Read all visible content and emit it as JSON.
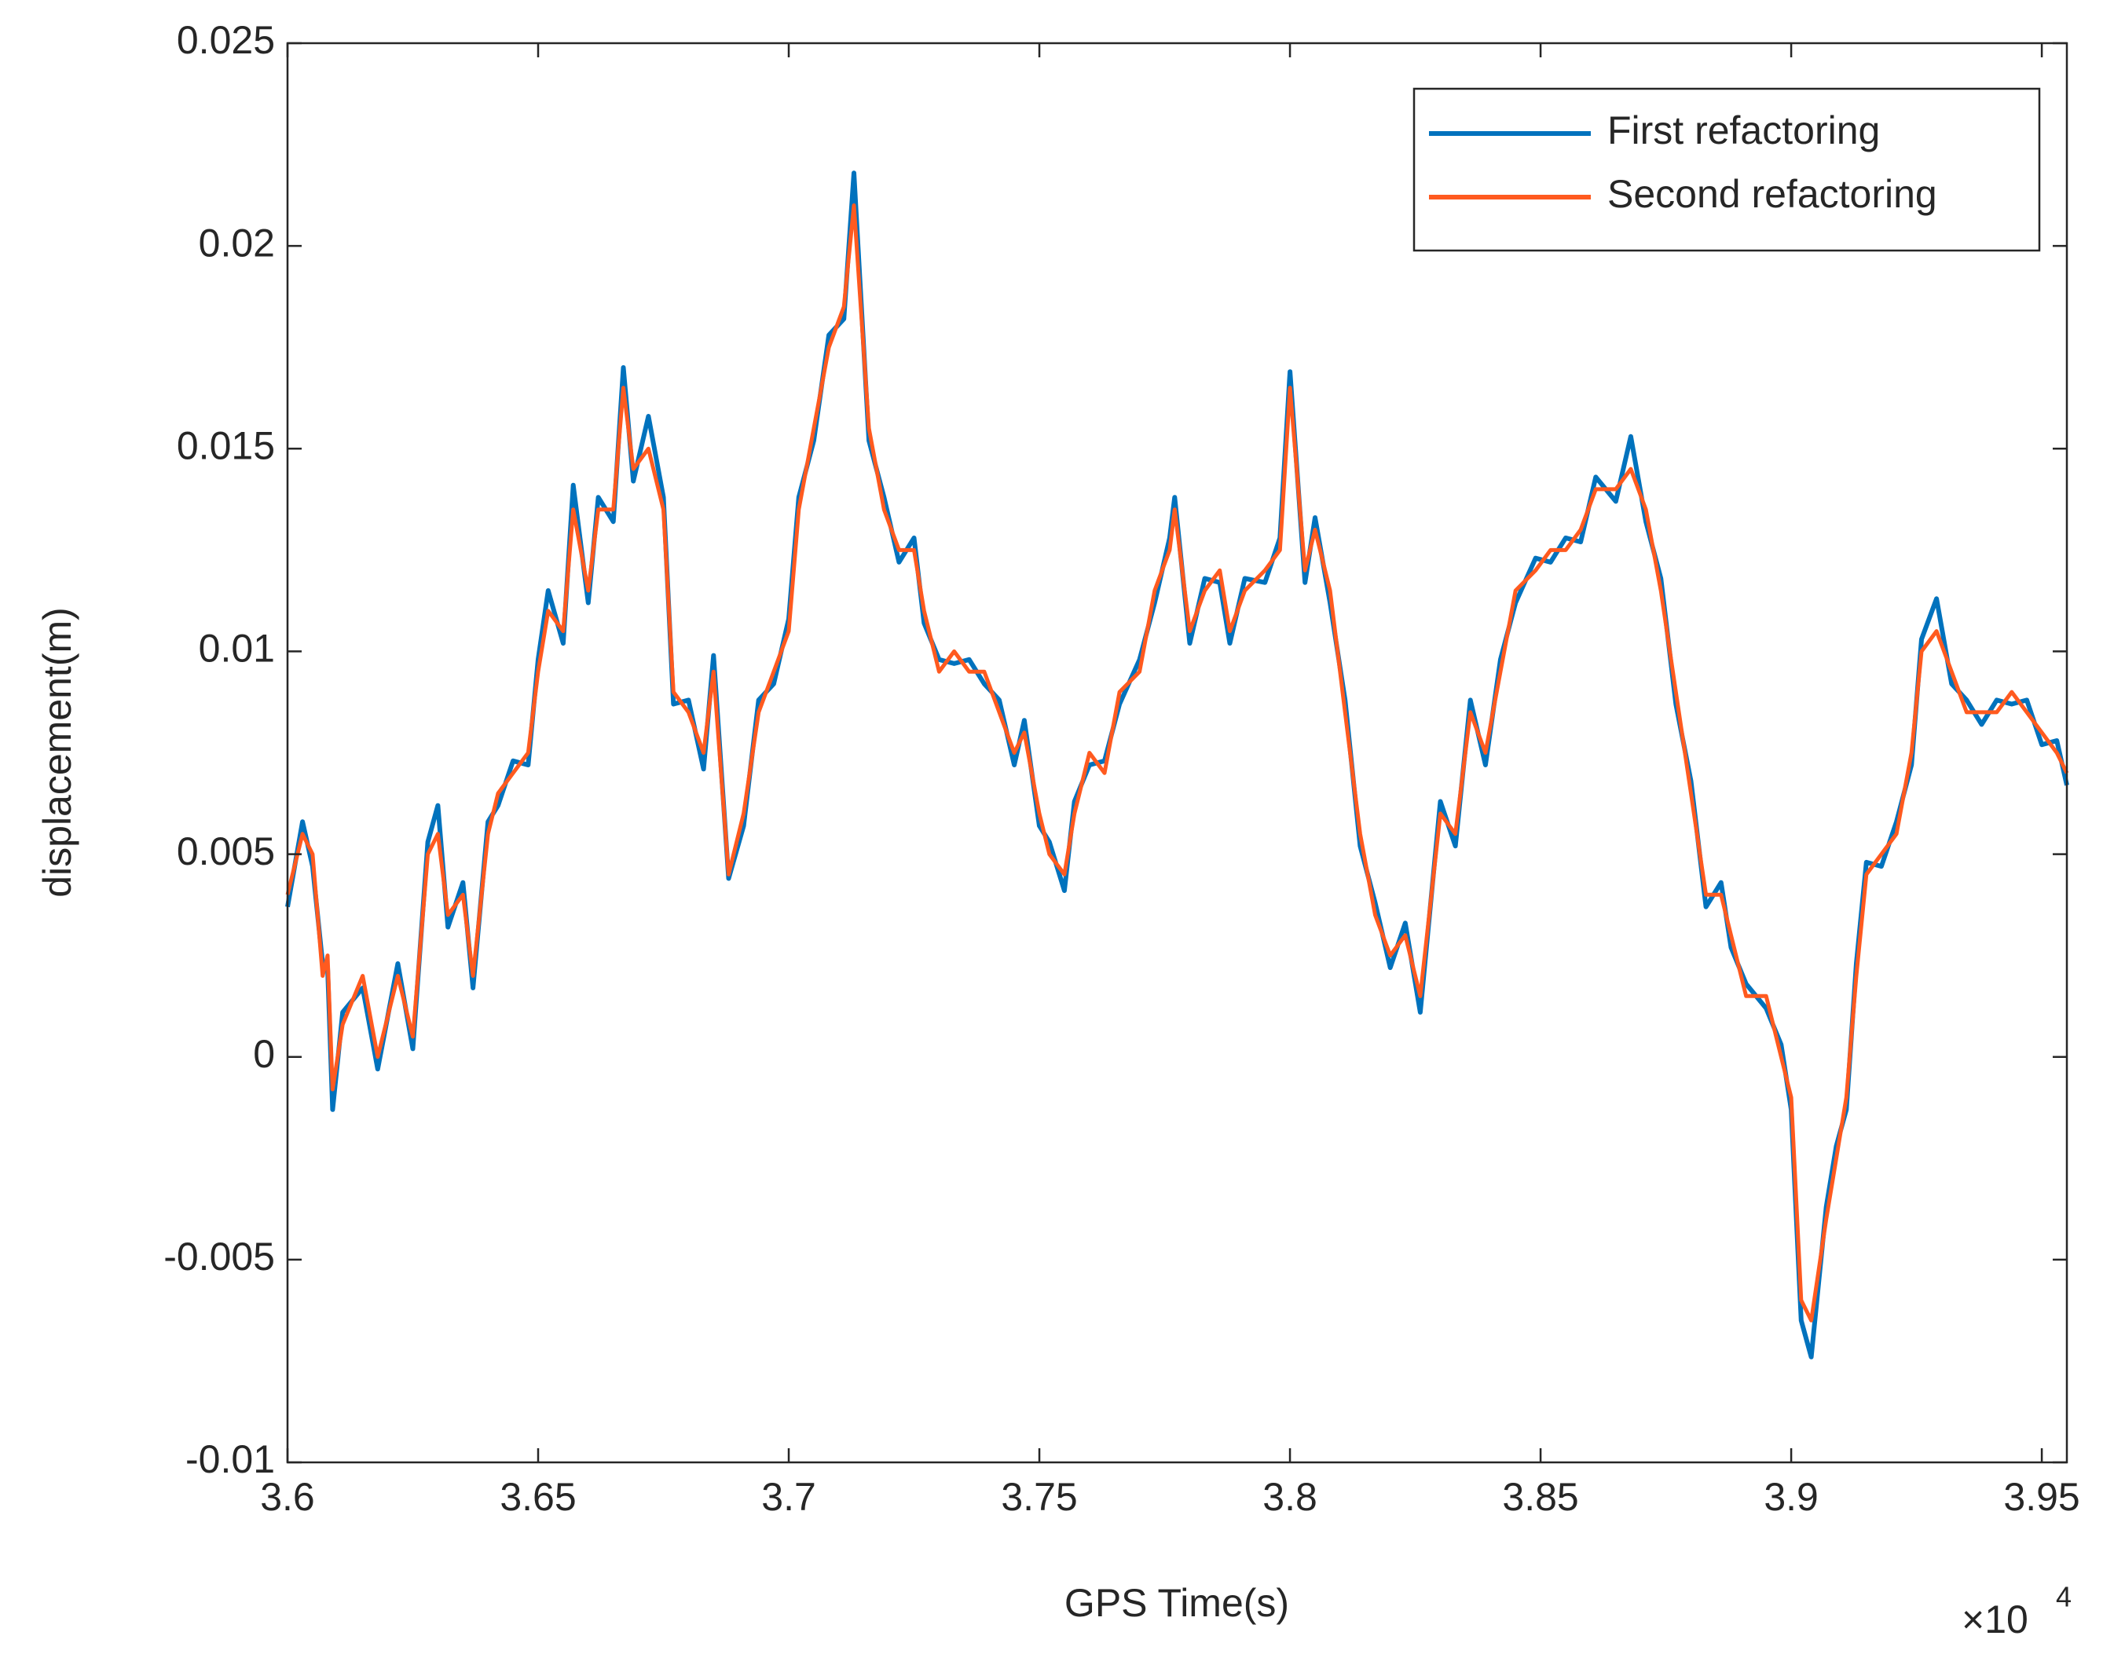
{
  "chart_data": {
    "type": "line",
    "xlabel": "GPS Time(s)",
    "ylabel": "displacement(m)",
    "x_multiplier": {
      "base": "×10",
      "exponent": "4"
    },
    "x": [
      36000,
      36030,
      36050,
      36070,
      36080,
      36090,
      36110,
      36150,
      36180,
      36220,
      36250,
      36280,
      36300,
      36320,
      36350,
      36370,
      36400,
      36420,
      36450,
      36480,
      36500,
      36520,
      36550,
      36570,
      36600,
      36620,
      36650,
      36670,
      36690,
      36720,
      36750,
      36770,
      36800,
      36830,
      36850,
      36880,
      36910,
      36940,
      36970,
      37000,
      37020,
      37050,
      37080,
      37110,
      37130,
      37160,
      37190,
      37220,
      37250,
      37270,
      37300,
      37330,
      37360,
      37390,
      37420,
      37450,
      37470,
      37500,
      37520,
      37550,
      37570,
      37600,
      37630,
      37660,
      37700,
      37730,
      37760,
      37770,
      37800,
      37830,
      37860,
      37880,
      37910,
      37950,
      37980,
      38000,
      38030,
      38050,
      38080,
      38110,
      38140,
      38170,
      38200,
      38230,
      38260,
      38300,
      38330,
      38360,
      38390,
      38420,
      38450,
      38490,
      38520,
      38550,
      38580,
      38610,
      38650,
      38680,
      38710,
      38740,
      38770,
      38800,
      38830,
      38860,
      38880,
      38910,
      38950,
      38980,
      39000,
      39020,
      39040,
      39070,
      39090,
      39110,
      39130,
      39150,
      39180,
      39210,
      39240,
      39260,
      39290,
      39320,
      39350,
      39380,
      39410,
      39440,
      39470,
      39500,
      39530,
      39550
    ],
    "series": [
      {
        "name": "First refactoring",
        "color": "#0072BD",
        "values": [
          0.0037,
          0.0058,
          0.0047,
          0.0023,
          0.0022,
          -0.0013,
          0.0011,
          0.0017,
          -0.0003,
          0.0023,
          0.0002,
          0.0053,
          0.0062,
          0.0032,
          0.0043,
          0.0017,
          0.0058,
          0.0062,
          0.0073,
          0.0072,
          0.0098,
          0.0115,
          0.0102,
          0.0141,
          0.0112,
          0.0138,
          0.0132,
          0.017,
          0.0142,
          0.0158,
          0.0138,
          0.0087,
          0.0088,
          0.0071,
          0.0099,
          0.0044,
          0.0057,
          0.0088,
          0.0092,
          0.0108,
          0.0138,
          0.0152,
          0.0178,
          0.0182,
          0.0218,
          0.0152,
          0.0138,
          0.0122,
          0.0128,
          0.0107,
          0.0098,
          0.0097,
          0.0098,
          0.0092,
          0.0088,
          0.0072,
          0.0083,
          0.0057,
          0.0053,
          0.0041,
          0.0063,
          0.0072,
          0.0073,
          0.0087,
          0.0098,
          0.0112,
          0.0128,
          0.0138,
          0.0102,
          0.0118,
          0.0117,
          0.0102,
          0.0118,
          0.0117,
          0.0128,
          0.0169,
          0.0117,
          0.0133,
          0.0112,
          0.0088,
          0.0052,
          0.0038,
          0.0022,
          0.0033,
          0.0011,
          0.0063,
          0.0052,
          0.0088,
          0.0072,
          0.0098,
          0.0112,
          0.0123,
          0.0122,
          0.0128,
          0.0127,
          0.0143,
          0.0137,
          0.0153,
          0.0132,
          0.0118,
          0.0087,
          0.0068,
          0.0037,
          0.0043,
          0.0027,
          0.0018,
          0.0012,
          0.0003,
          -0.0013,
          -0.0065,
          -0.0074,
          -0.0037,
          -0.0022,
          -0.0013,
          0.0023,
          0.0048,
          0.0047,
          0.0058,
          0.0072,
          0.0103,
          0.0113,
          0.0092,
          0.0088,
          0.0082,
          0.0088,
          0.0087,
          0.0088,
          0.0077,
          0.0078,
          0.0067
        ]
      },
      {
        "name": "Second refactoring",
        "color": "#FF5A1F",
        "values": [
          0.004,
          0.0055,
          0.005,
          0.002,
          0.0025,
          -0.0008,
          0.0008,
          0.002,
          0.0,
          0.002,
          0.0005,
          0.005,
          0.0055,
          0.0035,
          0.004,
          0.002,
          0.0055,
          0.0065,
          0.007,
          0.0075,
          0.0095,
          0.011,
          0.0105,
          0.0135,
          0.0115,
          0.0135,
          0.0135,
          0.0165,
          0.0145,
          0.015,
          0.0135,
          0.009,
          0.0085,
          0.0075,
          0.0095,
          0.0045,
          0.006,
          0.0085,
          0.0095,
          0.0105,
          0.0135,
          0.0155,
          0.0175,
          0.0185,
          0.021,
          0.0155,
          0.0135,
          0.0125,
          0.0125,
          0.011,
          0.0095,
          0.01,
          0.0095,
          0.0095,
          0.0085,
          0.0075,
          0.008,
          0.006,
          0.005,
          0.0045,
          0.006,
          0.0075,
          0.007,
          0.009,
          0.0095,
          0.0115,
          0.0125,
          0.0135,
          0.0105,
          0.0115,
          0.012,
          0.0105,
          0.0115,
          0.012,
          0.0125,
          0.0165,
          0.012,
          0.013,
          0.0115,
          0.0085,
          0.0055,
          0.0035,
          0.0025,
          0.003,
          0.0015,
          0.006,
          0.0055,
          0.0085,
          0.0075,
          0.0095,
          0.0115,
          0.012,
          0.0125,
          0.0125,
          0.013,
          0.014,
          0.014,
          0.0145,
          0.0135,
          0.0115,
          0.009,
          0.0065,
          0.004,
          0.004,
          0.003,
          0.0015,
          0.0015,
          0.0,
          -0.001,
          -0.006,
          -0.0065,
          -0.004,
          -0.0025,
          -0.001,
          0.002,
          0.0045,
          0.005,
          0.0055,
          0.0075,
          0.01,
          0.0105,
          0.0095,
          0.0085,
          0.0085,
          0.0085,
          0.009,
          0.0085,
          0.008,
          0.0075,
          0.007
        ]
      }
    ],
    "xlim": [
      36000,
      39550
    ],
    "xticks": [
      {
        "value": 36000,
        "label": "3.6"
      },
      {
        "value": 36500,
        "label": "3.65"
      },
      {
        "value": 37000,
        "label": "3.7"
      },
      {
        "value": 37500,
        "label": "3.75"
      },
      {
        "value": 38000,
        "label": "3.8"
      },
      {
        "value": 38500,
        "label": "3.85"
      },
      {
        "value": 39000,
        "label": "3.9"
      },
      {
        "value": 39500,
        "label": "3.95"
      }
    ],
    "ylim": [
      -0.01,
      0.025
    ],
    "yticks": [
      -0.01,
      -0.005,
      0,
      0.005,
      0.01,
      0.015,
      0.02,
      0.025
    ],
    "grid": false,
    "legend": "upper right"
  }
}
